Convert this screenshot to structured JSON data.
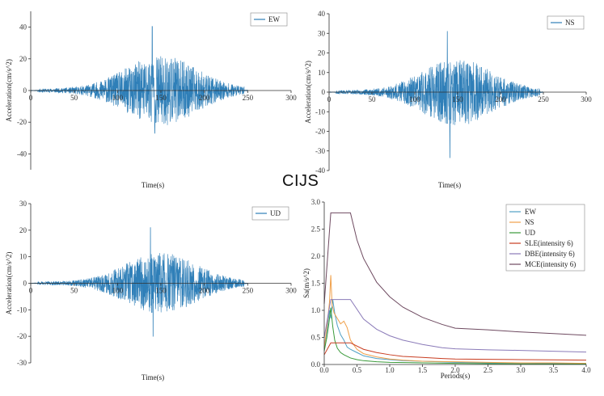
{
  "watermark": "CIJS",
  "colors": {
    "trace": "#2f7fb8",
    "EW": "#4f9fc4",
    "NS": "#f0a04a",
    "UD": "#3a9a3a",
    "SLE": "#c83c20",
    "DBE": "#8a7ab8",
    "MCE": "#6e4a60"
  },
  "chart_data": [
    {
      "type": "line",
      "name": "ew-time-history",
      "title": "",
      "xlabel": "Time(s)",
      "ylabel": "Acceleration(cm/s^2)",
      "xlim": [
        0,
        300
      ],
      "ylim": [
        -50,
        50
      ],
      "xticks": [
        "0",
        "50",
        "100",
        "150",
        "200",
        "250",
        "300"
      ],
      "yticks": [
        "-40",
        "-20",
        "0",
        "20",
        "40"
      ],
      "series": [
        {
          "name": "EW",
          "duration": 250,
          "peak_time": 140,
          "peak": 40.5,
          "min": -27,
          "seed": 11
        }
      ]
    },
    {
      "type": "line",
      "name": "ns-time-history",
      "title": "",
      "xlabel": "Time(s)",
      "ylabel": "Acceleration(cm/s^2)",
      "xlim": [
        0,
        300
      ],
      "ylim": [
        -40,
        40
      ],
      "xticks": [
        "0",
        "50",
        "100",
        "150",
        "200",
        "250",
        "300"
      ],
      "yticks": [
        "-40",
        "-30",
        "-20",
        "-10",
        "0",
        "10",
        "20",
        "30",
        "40"
      ],
      "series": [
        {
          "name": "NS",
          "duration": 250,
          "peak_time": 138,
          "peak": 31,
          "min": -33.5,
          "seed": 23
        }
      ]
    },
    {
      "type": "line",
      "name": "ud-time-history",
      "title": "",
      "xlabel": "Time(s)",
      "ylabel": "Acceleration(cm/s^2)",
      "xlim": [
        0,
        300
      ],
      "ylim": [
        -30,
        30
      ],
      "xticks": [
        "0",
        "50",
        "100",
        "150",
        "200",
        "250",
        "300"
      ],
      "yticks": [
        "-30",
        "-20",
        "-10",
        "0",
        "10",
        "20",
        "30"
      ],
      "series": [
        {
          "name": "UD",
          "duration": 250,
          "peak_time": 138,
          "peak": 21,
          "min": -20,
          "seed": 37
        }
      ]
    },
    {
      "type": "line",
      "name": "response-spectrum",
      "title": "",
      "xlabel": "Periods(s)",
      "ylabel": "Sa(m/s^2)",
      "xlim": [
        0,
        4.0
      ],
      "ylim": [
        0,
        3.0
      ],
      "xticks": [
        "0.0",
        "0.5",
        "1.0",
        "1.5",
        "2.0",
        "2.5",
        "3.0",
        "3.5",
        "4.0"
      ],
      "yticks": [
        "0.0",
        "0.5",
        "1.0",
        "1.5",
        "2.0",
        "2.5",
        "3.0"
      ],
      "series": [
        {
          "name": "EW",
          "x": [
            0,
            0.05,
            0.08,
            0.1,
            0.13,
            0.16,
            0.2,
            0.25,
            0.3,
            0.35,
            0.4,
            0.5,
            0.6,
            0.8,
            1.0,
            1.2,
            1.5,
            2.0,
            2.5,
            3.0,
            3.5,
            4.0
          ],
          "y": [
            0.28,
            0.7,
            1.0,
            0.85,
            1.2,
            0.95,
            0.72,
            0.55,
            0.45,
            0.32,
            0.28,
            0.22,
            0.16,
            0.11,
            0.09,
            0.07,
            0.06,
            0.04,
            0.03,
            0.025,
            0.02,
            0.02
          ]
        },
        {
          "name": "NS",
          "x": [
            0,
            0.05,
            0.08,
            0.1,
            0.12,
            0.15,
            0.2,
            0.25,
            0.3,
            0.35,
            0.4,
            0.5,
            0.6,
            0.8,
            1.0,
            1.2,
            1.5,
            2.0,
            2.5,
            3.0,
            3.5,
            4.0
          ],
          "y": [
            0.3,
            0.8,
            1.15,
            1.65,
            1.1,
            0.95,
            0.85,
            0.75,
            0.8,
            0.68,
            0.45,
            0.28,
            0.2,
            0.14,
            0.1,
            0.08,
            0.06,
            0.05,
            0.04,
            0.03,
            0.03,
            0.02
          ]
        },
        {
          "name": "UD",
          "x": [
            0,
            0.04,
            0.07,
            0.1,
            0.13,
            0.16,
            0.2,
            0.25,
            0.3,
            0.4,
            0.5,
            0.6,
            0.8,
            1.0,
            1.5,
            2.0,
            2.5,
            3.0,
            3.5,
            4.0
          ],
          "y": [
            0.25,
            0.5,
            0.75,
            1.05,
            0.7,
            0.45,
            0.3,
            0.22,
            0.18,
            0.12,
            0.09,
            0.07,
            0.05,
            0.04,
            0.03,
            0.02,
            0.015,
            0.012,
            0.01,
            0.01
          ]
        },
        {
          "name": "SLE(intensity 6)",
          "x": [
            0,
            0.1,
            0.2,
            0.3,
            0.4,
            0.6,
            0.8,
            1.0,
            1.2,
            1.5,
            1.8,
            2.0,
            2.5,
            3.0,
            3.5,
            4.0
          ],
          "y": [
            0.18,
            0.4,
            0.4,
            0.4,
            0.4,
            0.28,
            0.22,
            0.18,
            0.15,
            0.13,
            0.11,
            0.1,
            0.095,
            0.09,
            0.085,
            0.08
          ]
        },
        {
          "name": "DBE(intensity 6)",
          "x": [
            0,
            0.1,
            0.2,
            0.3,
            0.4,
            0.6,
            0.8,
            1.0,
            1.2,
            1.5,
            1.8,
            2.0,
            2.5,
            3.0,
            3.5,
            4.0
          ],
          "y": [
            0.5,
            1.2,
            1.2,
            1.2,
            1.2,
            0.84,
            0.65,
            0.53,
            0.45,
            0.37,
            0.31,
            0.29,
            0.27,
            0.26,
            0.245,
            0.23
          ]
        },
        {
          "name": "MCE(intensity 6)",
          "x": [
            0,
            0.1,
            0.2,
            0.3,
            0.4,
            0.5,
            0.6,
            0.8,
            1.0,
            1.2,
            1.5,
            1.8,
            2.0,
            2.5,
            3.0,
            3.5,
            4.0
          ],
          "y": [
            1.12,
            2.8,
            2.8,
            2.8,
            2.8,
            2.3,
            1.96,
            1.52,
            1.25,
            1.06,
            0.87,
            0.74,
            0.67,
            0.64,
            0.6,
            0.57,
            0.54
          ]
        }
      ]
    }
  ]
}
